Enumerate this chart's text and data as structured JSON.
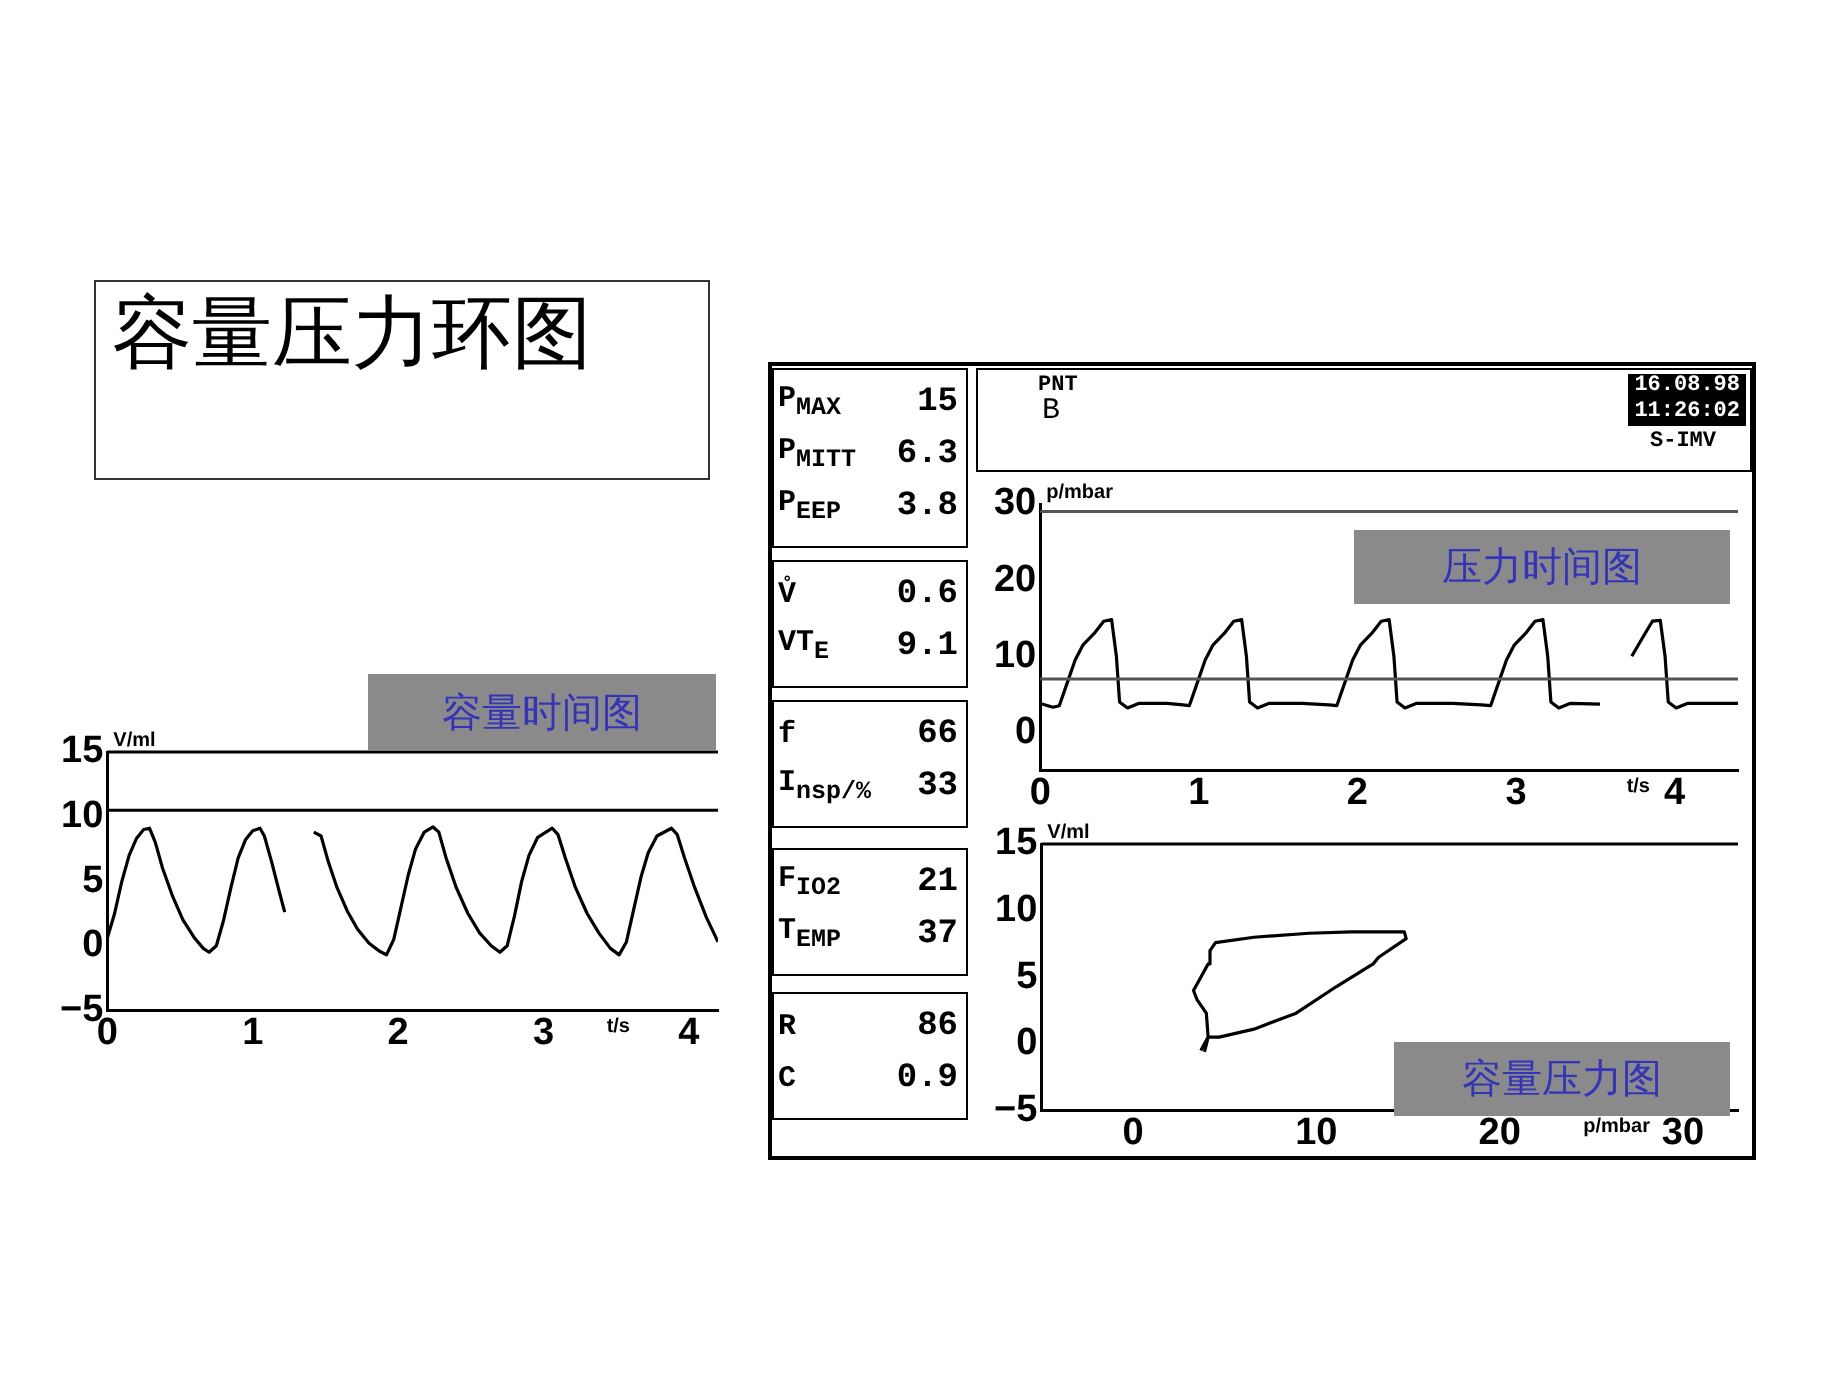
{
  "chart_data": [
    {
      "type": "other",
      "title": "容量压力环图"
    },
    {
      "type": "line",
      "title": "容量时间图",
      "xlabel": "t/s",
      "ylabel": "V/ml",
      "xlim": [
        0,
        4.2
      ],
      "ylim": [
        -5,
        15
      ],
      "xticks": [
        0,
        1,
        2,
        3,
        4
      ],
      "yticks": [
        -5,
        0,
        5,
        10,
        15
      ],
      "grid": false,
      "x": [
        0,
        0.05,
        0.1,
        0.15,
        0.2,
        0.25,
        0.29,
        0.33,
        0.38,
        0.45,
        0.52,
        0.6,
        0.66,
        0.7,
        0.75,
        0.8,
        0.85,
        0.9,
        0.95,
        1.0,
        1.05,
        1.08,
        1.13,
        1.18,
        1.22,
        1.3,
        1.42,
        1.47,
        1.52,
        1.58,
        1.65,
        1.72,
        1.8,
        1.87,
        1.92,
        1.97,
        2.02,
        2.07,
        2.12,
        2.18,
        2.24,
        2.28,
        2.33,
        2.4,
        2.48,
        2.56,
        2.64,
        2.7,
        2.75,
        2.8,
        2.85,
        2.9,
        2.96,
        3.06,
        3.1,
        3.15,
        3.22,
        3.3,
        3.38,
        3.46,
        3.52,
        3.57,
        3.62,
        3.67,
        3.72,
        3.78,
        3.88,
        3.92,
        3.97,
        4.04,
        4.12,
        4.2
      ],
      "series": [
        {
          "color": "#000000",
          "values": [
            0.6,
            2.5,
            5,
            7,
            8.3,
            9,
            9.1,
            8,
            6,
            3.8,
            2,
            0.6,
            -0.2,
            -0.5,
            0,
            2,
            4.5,
            6.8,
            8.2,
            8.9,
            9.1,
            8.5,
            6.5,
            4.3,
            2.6,
            null,
            8.8,
            8.5,
            6.5,
            4.5,
            2.7,
            1.3,
            0.2,
            -0.4,
            -0.7,
            0.5,
            3,
            5.5,
            7.5,
            8.8,
            9.2,
            8.8,
            6.8,
            4.5,
            2.5,
            1,
            0,
            -0.5,
            0,
            2.3,
            5,
            7,
            8.4,
            9.1,
            8.6,
            6.8,
            4.5,
            2.5,
            1,
            -0.2,
            -0.7,
            0.3,
            2.8,
            5.3,
            7.2,
            8.5,
            9.1,
            8.6,
            6.8,
            4.5,
            2.2,
            0.3
          ]
        }
      ],
      "ref_lines": [
        {
          "axis": "y",
          "value": 15,
          "color": "#000000"
        },
        {
          "axis": "y",
          "value": 10.5,
          "color": "#000000"
        }
      ]
    },
    {
      "type": "other",
      "annotations": [
        "P$_{MAX}$",
        "15",
        "P$_{MITT}$",
        "6.3",
        "P$_{EEP}$",
        "3.8",
        "V̊",
        "0.6",
        "VT$_{E}$",
        "9.1",
        "f",
        "66",
        "I$_{nsp/%}$",
        "33",
        "F$_{IO2}$",
        "21",
        "T$_{EMP}$",
        "37",
        "R",
        "86",
        "C",
        "0.9"
      ]
    },
    {
      "type": "other",
      "annotations": [
        "PNT",
        "B",
        "16.08.98",
        "11:26:02",
        "S-IMV"
      ]
    },
    {
      "type": "line",
      "title": "压力时间图",
      "xlabel": "t/s",
      "ylabel": "p/mbar",
      "xlim": [
        0,
        4.4
      ],
      "ylim": [
        -5,
        30
      ],
      "xticks": [
        0,
        1,
        2,
        3,
        4
      ],
      "yticks": [
        0,
        10,
        20,
        30
      ],
      "grid": false,
      "x": [
        0,
        0.08,
        0.12,
        0.17,
        0.22,
        0.27,
        0.34,
        0.4,
        0.45,
        0.48,
        0.5,
        0.55,
        0.62,
        0.8,
        0.9,
        0.94,
        0.99,
        1.04,
        1.09,
        1.16,
        1.22,
        1.27,
        1.3,
        1.32,
        1.37,
        1.44,
        1.65,
        1.82,
        1.87,
        1.92,
        1.97,
        2.02,
        2.09,
        2.15,
        2.2,
        2.23,
        2.25,
        2.3,
        2.37,
        2.6,
        2.78,
        2.84,
        2.89,
        2.94,
        2.99,
        3.06,
        3.12,
        3.17,
        3.2,
        3.22,
        3.27,
        3.34,
        3.53,
        3.6,
        3.73,
        3.8,
        3.86,
        3.91,
        3.94,
        3.96,
        4.01,
        4.08,
        4.4
      ],
      "series": [
        {
          "color": "#000000",
          "values": [
            3.8,
            3.3,
            3.5,
            6.5,
            9.5,
            11.5,
            13,
            14.6,
            14.8,
            10,
            4,
            3.2,
            3.8,
            3.8,
            3.6,
            3.5,
            6.5,
            9.5,
            11.5,
            13,
            14.6,
            14.8,
            10,
            4,
            3.2,
            3.8,
            3.8,
            3.6,
            3.5,
            6.5,
            9.5,
            11.5,
            13,
            14.6,
            14.8,
            10,
            4,
            3.2,
            3.8,
            3.8,
            3.6,
            3.5,
            6.5,
            9.5,
            11.5,
            13,
            14.6,
            14.8,
            10,
            4,
            3.2,
            3.8,
            3.7,
            null,
            10,
            12.5,
            14.6,
            14.7,
            10,
            4,
            3.2,
            3.8,
            3.8
          ]
        }
      ],
      "ref_lines": [
        {
          "axis": "y",
          "value": 29,
          "color": "#555555"
        },
        {
          "axis": "y",
          "value": 7,
          "color": "#555555"
        }
      ]
    },
    {
      "type": "line",
      "title": "容量压力图",
      "xlabel": "p/mbar",
      "ylabel": "V/ml",
      "xlim": [
        -5,
        33
      ],
      "ylim": [
        -5,
        15
      ],
      "xticks": [
        0,
        10,
        20,
        30
      ],
      "yticks": [
        -5,
        0,
        5,
        10,
        15
      ],
      "grid": false,
      "x": [
        3.9,
        4.1,
        4,
        3.5,
        3.3,
        3.7,
        4.1,
        4.2,
        4.5,
        6.6,
        9.6,
        11.9,
        14.8,
        14.9,
        13.4,
        13.1,
        11.1,
        8.9,
        6.6,
        4.7,
        4.1,
        3.7
      ],
      "series": [
        {
          "color": "#000000",
          "values": [
            -0.6,
            0.5,
            2.3,
            3.3,
            4,
            5,
            6,
            7,
            7.6,
            8,
            8.3,
            8.4,
            8.4,
            7.9,
            6.5,
            6,
            4.3,
            2.3,
            1.1,
            0.5,
            0.5,
            -0.5
          ]
        }
      ],
      "ref_lines": [
        {
          "axis": "y",
          "value": 15,
          "color": "#000000"
        }
      ]
    }
  ]
}
